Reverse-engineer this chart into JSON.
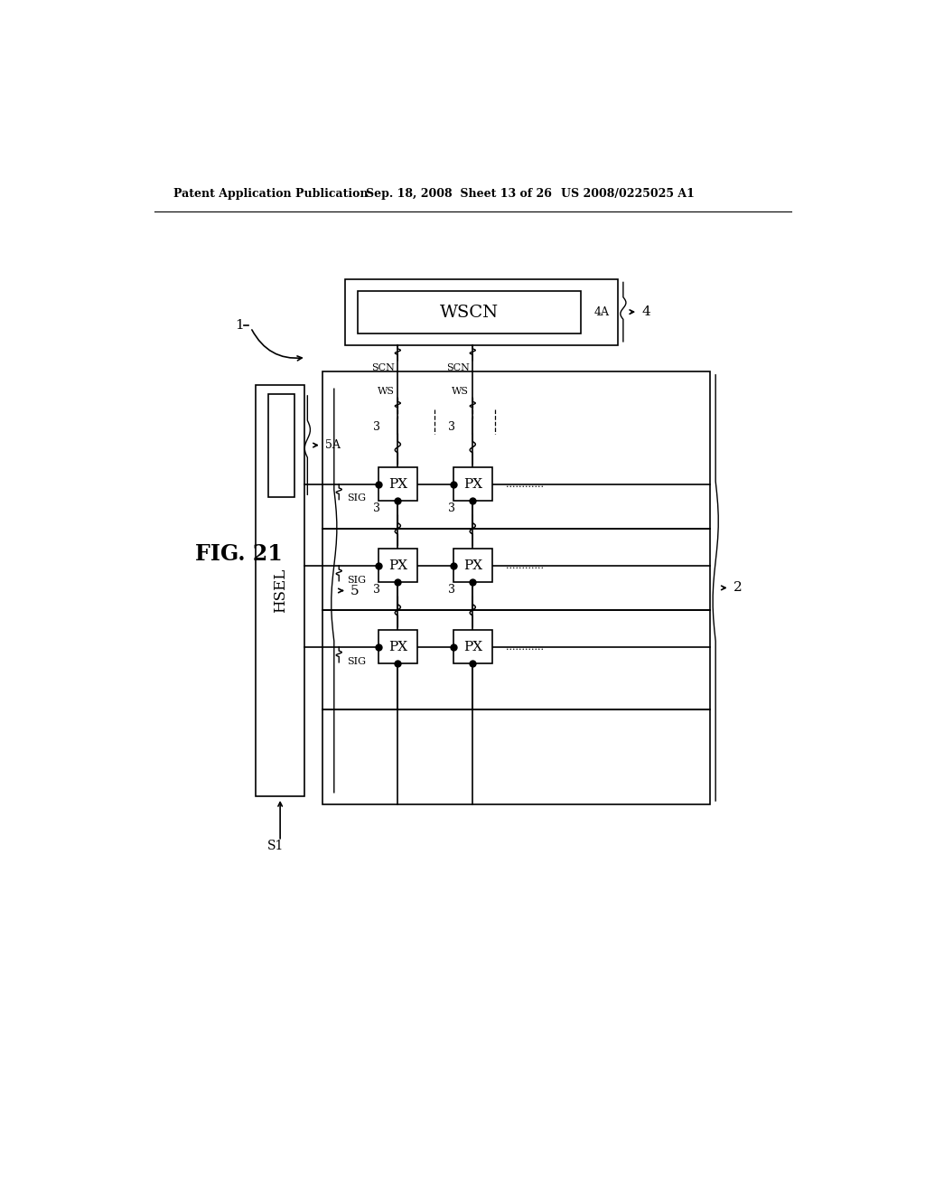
{
  "bg_color": "#ffffff",
  "lc": "#000000",
  "header_left": "Patent Application Publication",
  "header_mid": "Sep. 18, 2008  Sheet 13 of 26",
  "header_right": "US 2008/0225025 A1",
  "fig_label": "FIG. 21",
  "lbl_1": "1",
  "lbl_2": "2",
  "lbl_3": "3",
  "lbl_4": "4",
  "lbl_4A": "4A",
  "lbl_5": "5",
  "lbl_5A": "5A",
  "lbl_S1": "S1",
  "lbl_WSCN": "WSCN",
  "lbl_HSEL": "HSEL",
  "lbl_SCN": "SCN",
  "lbl_WS": "WS",
  "lbl_SIG": "SIG",
  "lbl_PX": "PX",
  "lbl_dots": "............"
}
